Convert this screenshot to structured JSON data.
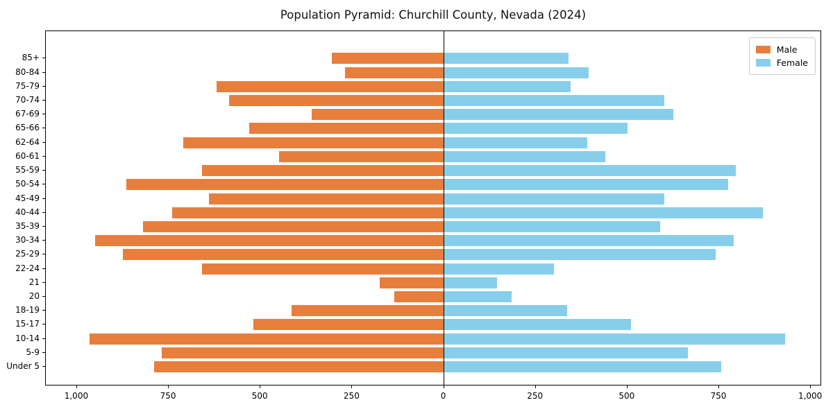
{
  "title": "Population Pyramid: Churchill County, Nevada (2024)",
  "legend": {
    "male_label": "Male",
    "female_label": "Female"
  },
  "colors": {
    "male": "#e87e3c",
    "female": "#87ceeb",
    "axis": "#000000",
    "legend_border": "#cccccc",
    "background": "#ffffff"
  },
  "chart_data": {
    "type": "bar",
    "subtype": "population-pyramid",
    "title": "Population Pyramid: Churchill County, Nevada (2024)",
    "orientation": "horizontal",
    "grid": false,
    "legend_position": "upper right",
    "categories_top_to_bottom": [
      "85+",
      "80-84",
      "75-79",
      "70-74",
      "67-69",
      "65-66",
      "62-64",
      "60-61",
      "55-59",
      "50-54",
      "45-49",
      "40-44",
      "35-39",
      "30-34",
      "25-29",
      "22-24",
      "21",
      "20",
      "18-19",
      "15-17",
      "10-14",
      "5-9",
      "Under 5"
    ],
    "series": [
      {
        "name": "Male",
        "side": "left",
        "color": "#e87e3c",
        "values": [
          305,
          270,
          620,
          585,
          360,
          530,
          710,
          450,
          660,
          865,
          640,
          740,
          820,
          950,
          875,
          660,
          175,
          135,
          415,
          520,
          965,
          770,
          790
        ]
      },
      {
        "name": "Female",
        "side": "right",
        "color": "#87ceeb",
        "values": [
          340,
          395,
          345,
          600,
          625,
          500,
          390,
          440,
          795,
          775,
          600,
          870,
          590,
          790,
          740,
          300,
          145,
          185,
          335,
          510,
          930,
          665,
          755
        ]
      }
    ],
    "x_tick_values": [
      -1000,
      -750,
      -500,
      -250,
      0,
      250,
      500,
      750,
      1000
    ],
    "x_tick_labels": [
      "1,000",
      "750",
      "500",
      "250",
      "0",
      "250",
      "500",
      "750",
      "1,000"
    ],
    "xlim": [
      -1085,
      1030
    ]
  }
}
